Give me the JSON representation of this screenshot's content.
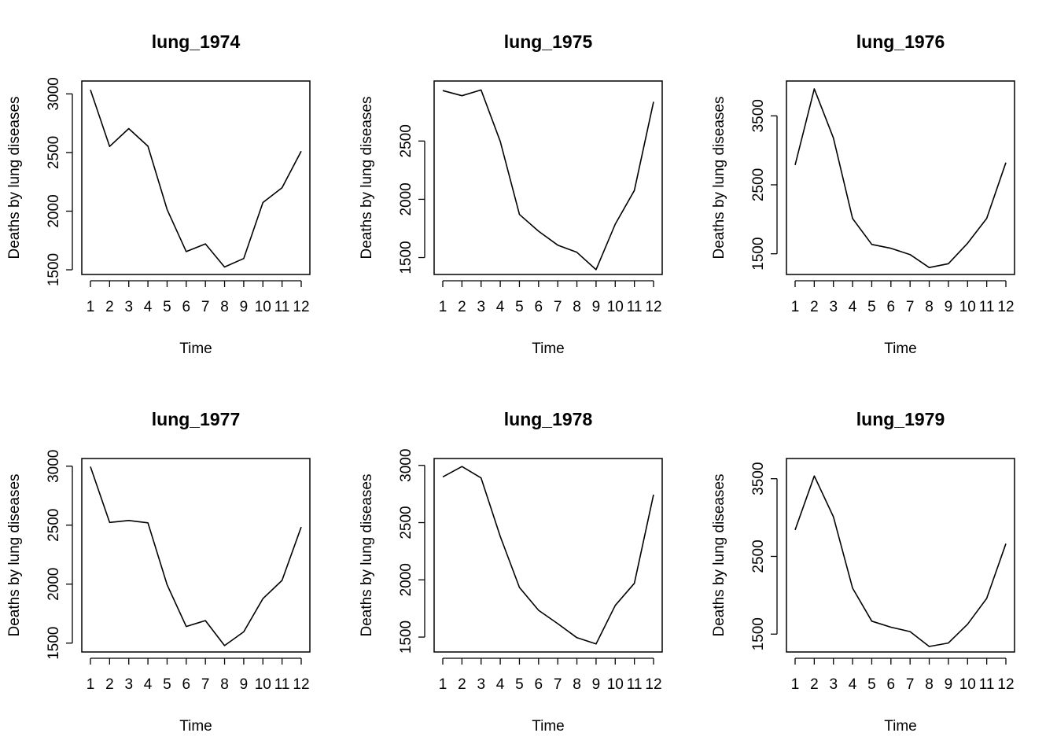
{
  "chart_data": [
    {
      "type": "line",
      "title": "lung_1974",
      "xlabel": "Time",
      "ylabel": "Deaths by lung diseases",
      "x": [
        1,
        2,
        3,
        4,
        5,
        6,
        7,
        8,
        9,
        10,
        11,
        12
      ],
      "xticks": [
        "1",
        "2",
        "3",
        "4",
        "5",
        "6",
        "7",
        "8",
        "9",
        "10",
        "11",
        "12"
      ],
      "yticks": [
        1500,
        2000,
        2500,
        3000
      ],
      "ylim": [
        1460,
        3110
      ],
      "values": [
        3035,
        2552,
        2704,
        2554,
        2014,
        1655,
        1721,
        1524,
        1596,
        2074,
        2199,
        2512
      ],
      "grid": false
    },
    {
      "type": "line",
      "title": "lung_1975",
      "xlabel": "Time",
      "ylabel": "Deaths by lung diseases",
      "x": [
        1,
        2,
        3,
        4,
        5,
        6,
        7,
        8,
        9,
        10,
        11,
        12
      ],
      "xticks": [
        "1",
        "2",
        "3",
        "4",
        "5",
        "6",
        "7",
        "8",
        "9",
        "10",
        "11",
        "12"
      ],
      "yticks": [
        1500,
        2000,
        2500
      ],
      "ylim": [
        1355,
        3015
      ],
      "values": [
        2933,
        2889,
        2938,
        2497,
        1870,
        1726,
        1607,
        1545,
        1396,
        1787,
        2076,
        2837
      ],
      "grid": false
    },
    {
      "type": "line",
      "title": "lung_1976",
      "xlabel": "Time",
      "ylabel": "Deaths by lung diseases",
      "x": [
        1,
        2,
        3,
        4,
        5,
        6,
        7,
        8,
        9,
        10,
        11,
        12
      ],
      "xticks": [
        "1",
        "2",
        "3",
        "4",
        "5",
        "6",
        "7",
        "8",
        "9",
        "10",
        "11",
        "12"
      ],
      "yticks": [
        1500,
        2500,
        3500
      ],
      "ylim": [
        1200,
        4005
      ],
      "values": [
        2787,
        3891,
        3179,
        2011,
        1636,
        1580,
        1489,
        1300,
        1356,
        1653,
        2013,
        2823
      ],
      "grid": false
    },
    {
      "type": "line",
      "title": "lung_1977",
      "xlabel": "Time",
      "ylabel": "Deaths by lung diseases",
      "x": [
        1,
        2,
        3,
        4,
        5,
        6,
        7,
        8,
        9,
        10,
        11,
        12
      ],
      "xticks": [
        "1",
        "2",
        "3",
        "4",
        "5",
        "6",
        "7",
        "8",
        "9",
        "10",
        "11",
        "12"
      ],
      "yticks": [
        1500,
        2000,
        2500,
        3000
      ],
      "ylim": [
        1425,
        3065
      ],
      "values": [
        2996,
        2523,
        2540,
        2520,
        1994,
        1641,
        1691,
        1479,
        1596,
        1877,
        2032,
        2484
      ],
      "grid": false
    },
    {
      "type": "line",
      "title": "lung_1978",
      "xlabel": "Time",
      "ylabel": "Deaths by lung diseases",
      "x": [
        1,
        2,
        3,
        4,
        5,
        6,
        7,
        8,
        9,
        10,
        11,
        12
      ],
      "xticks": [
        "1",
        "2",
        "3",
        "4",
        "5",
        "6",
        "7",
        "8",
        "9",
        "10",
        "11",
        "12"
      ],
      "yticks": [
        1500,
        2000,
        2500,
        3000
      ],
      "ylim": [
        1370,
        3060
      ],
      "values": [
        2899,
        2990,
        2890,
        2379,
        1933,
        1734,
        1617,
        1495,
        1440,
        1777,
        1970,
        2745
      ],
      "grid": false
    },
    {
      "type": "line",
      "title": "lung_1979",
      "xlabel": "Time",
      "ylabel": "Deaths by lung diseases",
      "x": [
        1,
        2,
        3,
        4,
        5,
        6,
        7,
        8,
        9,
        10,
        11,
        12
      ],
      "xticks": [
        "1",
        "2",
        "3",
        "4",
        "5",
        "6",
        "7",
        "8",
        "9",
        "10",
        "11",
        "12"
      ],
      "yticks": [
        1500,
        2500,
        3500
      ],
      "ylim": [
        1270,
        3760
      ],
      "values": [
        2841,
        3535,
        3010,
        2091,
        1667,
        1589,
        1532,
        1341,
        1385,
        1627,
        1959,
        2664
      ],
      "grid": false
    }
  ]
}
